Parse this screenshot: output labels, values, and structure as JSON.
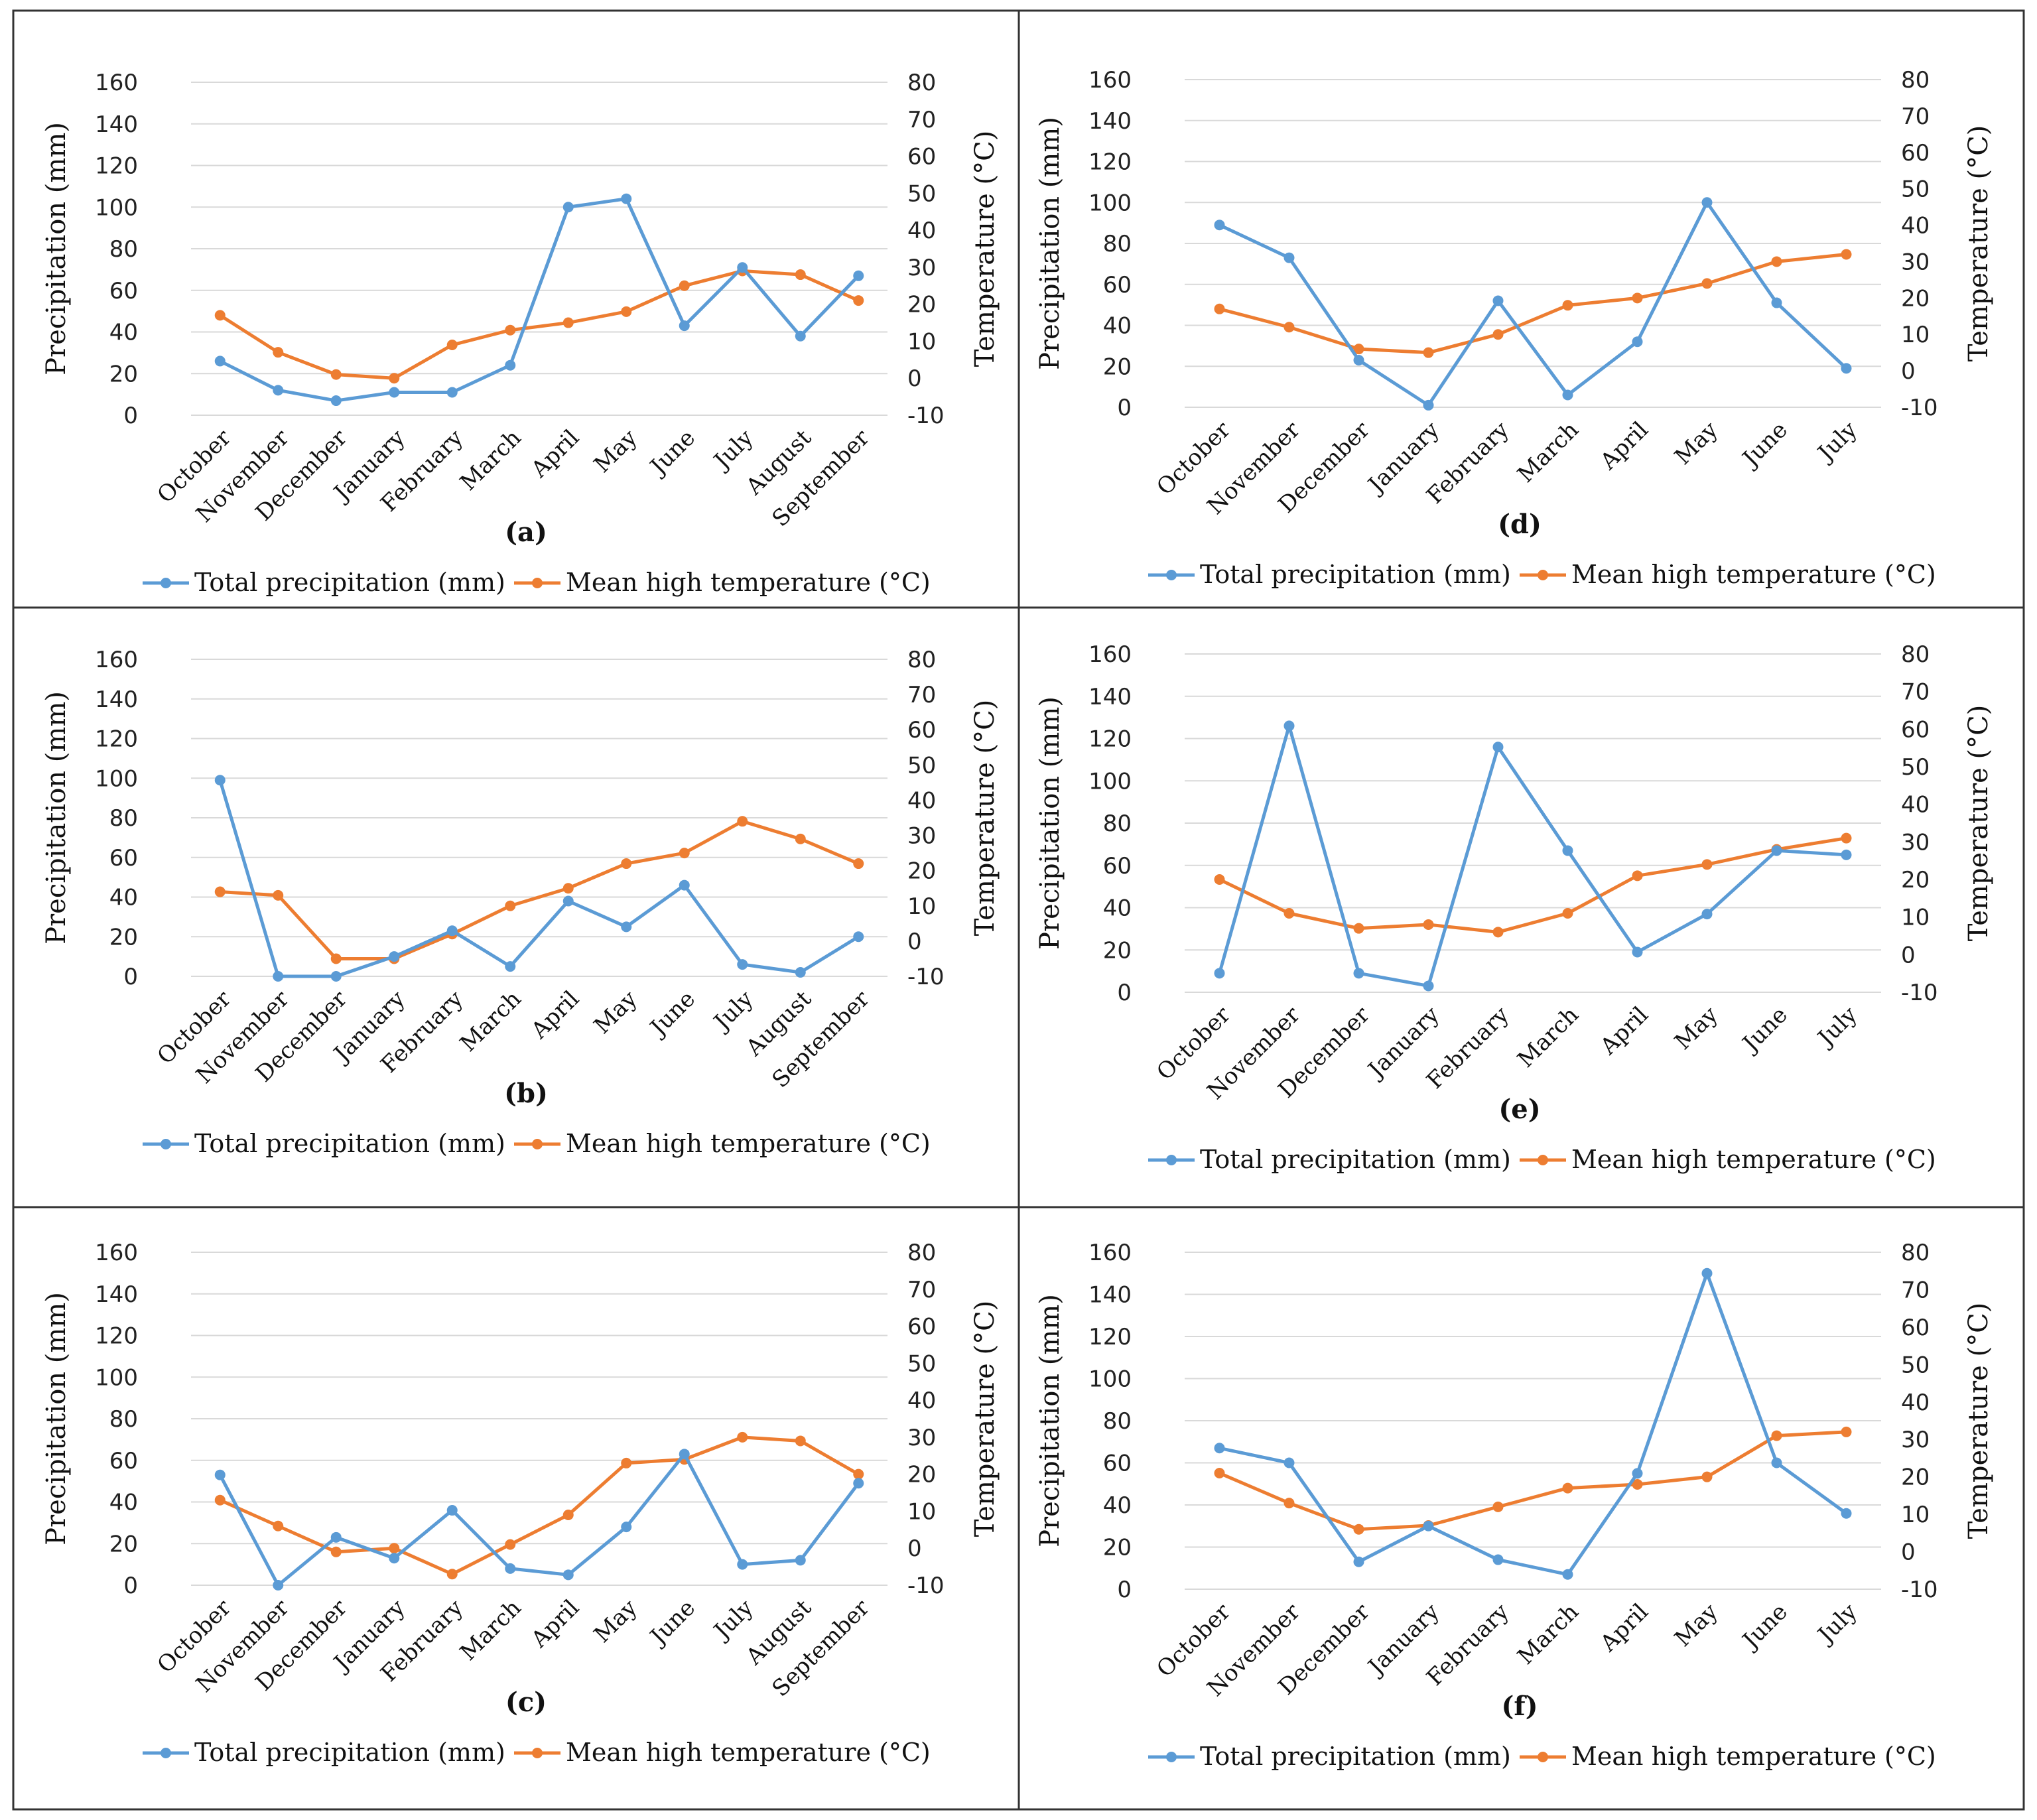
{
  "colors": {
    "precip": "#5b9bd5",
    "temp": "#ed7d31",
    "grid": "#d9d9d9",
    "border": "#333333"
  },
  "chart_data": [
    {
      "type": "line",
      "panel_label": "(a)",
      "categories": [
        "October",
        "November",
        "December",
        "January",
        "February",
        "March",
        "April",
        "May",
        "June",
        "July",
        "August",
        "September"
      ],
      "series": [
        {
          "name": "Total precipitation (mm)",
          "axis": "left",
          "values": [
            26,
            12,
            7,
            11,
            11,
            24,
            100,
            104,
            43,
            71,
            38,
            67
          ]
        },
        {
          "name": "Mean high temperature (°C)",
          "axis": "right",
          "values": [
            17,
            7,
            1,
            0,
            9,
            13,
            15,
            18,
            25,
            29,
            28,
            21
          ]
        }
      ],
      "ylabel_left": "Precipitation (mm)",
      "ylabel_right": "Temperature (°C)",
      "ylim_left": [
        0,
        160
      ],
      "ylim_right": [
        -10,
        80
      ],
      "yticks_left": [
        "0",
        "20",
        "40",
        "60",
        "80",
        "100",
        "120",
        "140",
        "160"
      ],
      "yticks_right": [
        "-10",
        "0",
        "10",
        "20",
        "30",
        "40",
        "50",
        "60",
        "70",
        "80"
      ]
    },
    {
      "type": "line",
      "panel_label": "(b)",
      "categories": [
        "October",
        "November",
        "December",
        "January",
        "February",
        "March",
        "April",
        "May",
        "June",
        "July",
        "August",
        "September"
      ],
      "series": [
        {
          "name": "Total precipitation (mm)",
          "axis": "left",
          "values": [
            99,
            0,
            0,
            10,
            23,
            5,
            38,
            25,
            46,
            6,
            2,
            20
          ]
        },
        {
          "name": "Mean high temperature (°C)",
          "axis": "right",
          "values": [
            14,
            13,
            -5,
            -5,
            2,
            10,
            15,
            22,
            25,
            34,
            29,
            22
          ]
        }
      ],
      "ylabel_left": "Precipitation (mm)",
      "ylabel_right": "Temperature (°C)",
      "ylim_left": [
        0,
        160
      ],
      "ylim_right": [
        -10,
        80
      ],
      "yticks_left": [
        "0",
        "20",
        "40",
        "60",
        "80",
        "100",
        "120",
        "140",
        "160"
      ],
      "yticks_right": [
        "-10",
        "0",
        "10",
        "20",
        "30",
        "40",
        "50",
        "60",
        "70",
        "80"
      ]
    },
    {
      "type": "line",
      "panel_label": "(c)",
      "categories": [
        "October",
        "November",
        "December",
        "January",
        "February",
        "March",
        "April",
        "May",
        "June",
        "July",
        "August",
        "September"
      ],
      "series": [
        {
          "name": "Total precipitation (mm)",
          "axis": "left",
          "values": [
            53,
            0,
            23,
            13,
            36,
            8,
            5,
            28,
            63,
            10,
            12,
            49
          ]
        },
        {
          "name": "Mean high temperature (°C)",
          "axis": "right",
          "values": [
            13,
            6,
            -1,
            0,
            -7,
            1,
            9,
            23,
            24,
            30,
            29,
            20
          ]
        }
      ],
      "ylabel_left": "Precipitation (mm)",
      "ylabel_right": "Temperature (°C)",
      "ylim_left": [
        0,
        160
      ],
      "ylim_right": [
        -10,
        80
      ],
      "yticks_left": [
        "0",
        "20",
        "40",
        "60",
        "80",
        "100",
        "120",
        "140",
        "160"
      ],
      "yticks_right": [
        "-10",
        "0",
        "10",
        "20",
        "30",
        "40",
        "50",
        "60",
        "70",
        "80"
      ]
    },
    {
      "type": "line",
      "panel_label": "(d)",
      "categories": [
        "October",
        "November",
        "December",
        "January",
        "February",
        "March",
        "April",
        "May",
        "June",
        "July"
      ],
      "series": [
        {
          "name": "Total precipitation (mm)",
          "axis": "left",
          "values": [
            89,
            73,
            23,
            1,
            52,
            6,
            32,
            100,
            51,
            19
          ]
        },
        {
          "name": "Mean high temperature (°C)",
          "axis": "right",
          "values": [
            17,
            12,
            6,
            5,
            10,
            18,
            20,
            24,
            30,
            32
          ]
        }
      ],
      "ylabel_left": "Precipitation (mm)",
      "ylabel_right": "Temperature (°C)",
      "ylim_left": [
        0,
        160
      ],
      "ylim_right": [
        -10,
        80
      ],
      "yticks_left": [
        "0",
        "20",
        "40",
        "60",
        "80",
        "100",
        "120",
        "140",
        "160"
      ],
      "yticks_right": [
        "-10",
        "0",
        "10",
        "20",
        "30",
        "40",
        "50",
        "60",
        "70",
        "80"
      ]
    },
    {
      "type": "line",
      "panel_label": "(e)",
      "categories": [
        "October",
        "November",
        "December",
        "January",
        "February",
        "March",
        "April",
        "May",
        "June",
        "July"
      ],
      "series": [
        {
          "name": "Total precipitation (mm)",
          "axis": "left",
          "values": [
            9,
            126,
            9,
            3,
            116,
            67,
            19,
            37,
            67,
            65
          ]
        },
        {
          "name": "Mean high temperature (°C)",
          "axis": "right",
          "values": [
            20,
            11,
            7,
            8,
            6,
            11,
            21,
            24,
            28,
            31
          ]
        }
      ],
      "ylabel_left": "Precipitation (mm)",
      "ylabel_right": "Temperature (°C)",
      "ylim_left": [
        0,
        160
      ],
      "ylim_right": [
        -10,
        80
      ],
      "yticks_left": [
        "0",
        "20",
        "40",
        "60",
        "80",
        "100",
        "120",
        "140",
        "160"
      ],
      "yticks_right": [
        "-10",
        "0",
        "10",
        "20",
        "30",
        "40",
        "50",
        "60",
        "70",
        "80"
      ]
    },
    {
      "type": "line",
      "panel_label": "(f)",
      "categories": [
        "October",
        "November",
        "December",
        "January",
        "February",
        "March",
        "April",
        "May",
        "June",
        "July"
      ],
      "series": [
        {
          "name": "Total precipitation (mm)",
          "axis": "left",
          "values": [
            67,
            60,
            13,
            30,
            14,
            7,
            55,
            150,
            60,
            36
          ]
        },
        {
          "name": "Mean high temperature (°C)",
          "axis": "right",
          "values": [
            21,
            13,
            6,
            7,
            12,
            17,
            18,
            20,
            31,
            32
          ]
        }
      ],
      "ylabel_left": "Precipitation (mm)",
      "ylabel_right": "Temperature (°C)",
      "ylim_left": [
        0,
        160
      ],
      "ylim_right": [
        -10,
        80
      ],
      "yticks_left": [
        "0",
        "20",
        "40",
        "60",
        "80",
        "100",
        "120",
        "140",
        "160"
      ],
      "yticks_right": [
        "-10",
        "0",
        "10",
        "20",
        "30",
        "40",
        "50",
        "60",
        "70",
        "80"
      ]
    }
  ]
}
